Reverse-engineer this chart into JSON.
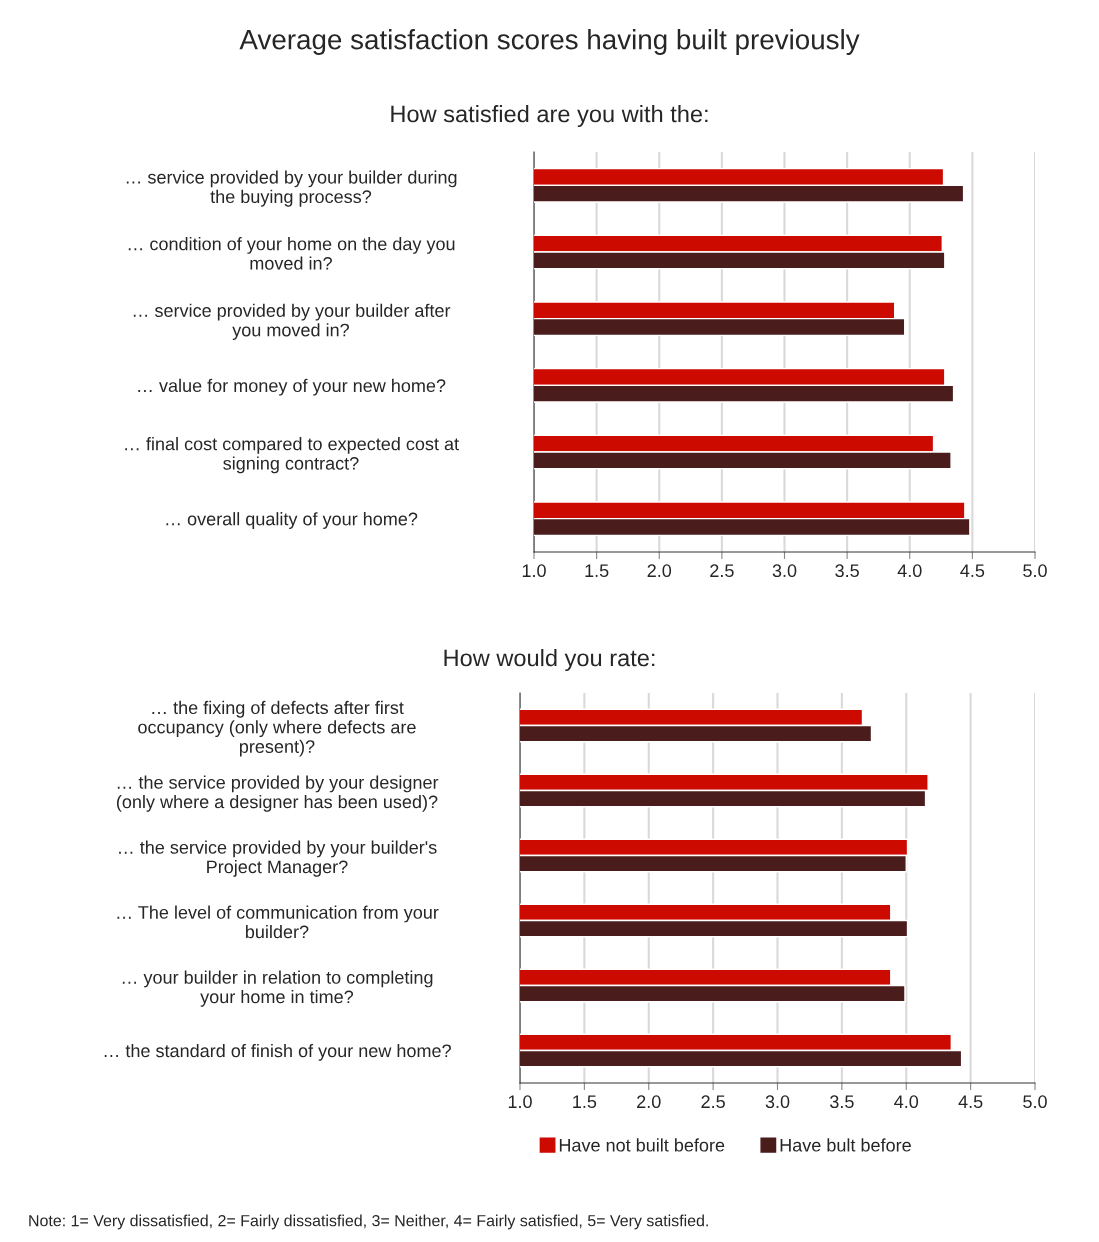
{
  "chart_data": [
    {
      "type": "bar",
      "orientation": "horizontal",
      "title": "Average satisfaction scores having built previously",
      "subtitle": "How satisfied are you with the:",
      "categories": [
        "… service provided by your builder during the buying process?",
        "… condition of your home on the day you moved in?",
        "… service provided by your builder after you moved in?",
        "… value for money of your new home?",
        "… final cost compared to expected cost at signing contract?",
        "… overall quality of your home?"
      ],
      "series": [
        {
          "color": "#cc0a00",
          "values": [
            4.27,
            4.26,
            3.88,
            4.28,
            4.19,
            4.44
          ]
        },
        {
          "color": "#4a1c1c",
          "values": [
            4.43,
            4.28,
            3.96,
            4.35,
            4.33,
            4.48
          ]
        }
      ],
      "xlim": [
        1,
        5
      ],
      "xticks": [
        {
          "value": 1,
          "label": "1.0"
        },
        {
          "value": 1.5,
          "label": "1.5"
        },
        {
          "value": 2,
          "label": "2.0"
        },
        {
          "value": 2.5,
          "label": "2.5"
        },
        {
          "value": 3,
          "label": "3.0"
        },
        {
          "value": 3.5,
          "label": "3.5"
        },
        {
          "value": 4,
          "label": "4.0"
        },
        {
          "value": 4.5,
          "label": "4.5"
        },
        {
          "value": 5,
          "label": "5.0"
        }
      ],
      "grid": "x",
      "legend": false
    },
    {
      "type": "bar",
      "orientation": "horizontal",
      "title": "How would you rate:",
      "categories": [
        "… the fixing of defects after first occupancy (only where defects are present)?",
        "… the service provided by your designer (only where a designer has been used)?",
        "… the service provided by your builder's Project Manager?",
        "… The level of communication from your builder?",
        "… your builder in relation to completing your home in time?",
        "… the standard of finish of your new home?"
      ],
      "series": [
        {
          "name": "Have not built before",
          "color": "#cc0a00",
          "values": [
            3.66,
            4.17,
            4.01,
            3.88,
            3.88,
            4.35
          ]
        },
        {
          "name": "Have bult before",
          "color": "#4a1c1c",
          "values": [
            3.73,
            4.15,
            4.0,
            4.01,
            3.99,
            4.43
          ]
        }
      ],
      "xlim": [
        1,
        5
      ],
      "xticks": [
        {
          "value": 1,
          "label": "1.0"
        },
        {
          "value": 1.5,
          "label": "1.5"
        },
        {
          "value": 2,
          "label": "2.0"
        },
        {
          "value": 2.5,
          "label": "2.5"
        },
        {
          "value": 3,
          "label": "3.0"
        },
        {
          "value": 3.5,
          "label": "3.5"
        },
        {
          "value": 4,
          "label": "4.0"
        },
        {
          "value": 4.5,
          "label": "4.5"
        },
        {
          "value": 5,
          "label": "5.0"
        }
      ],
      "grid": "x",
      "legend": "bottom",
      "annotations": [
        "Note: 1= Very dissatisfied, 2= Fairly dissatisfied, 3= Neither, 4= Fairly satisfied, 5= Very satisfied."
      ]
    }
  ]
}
